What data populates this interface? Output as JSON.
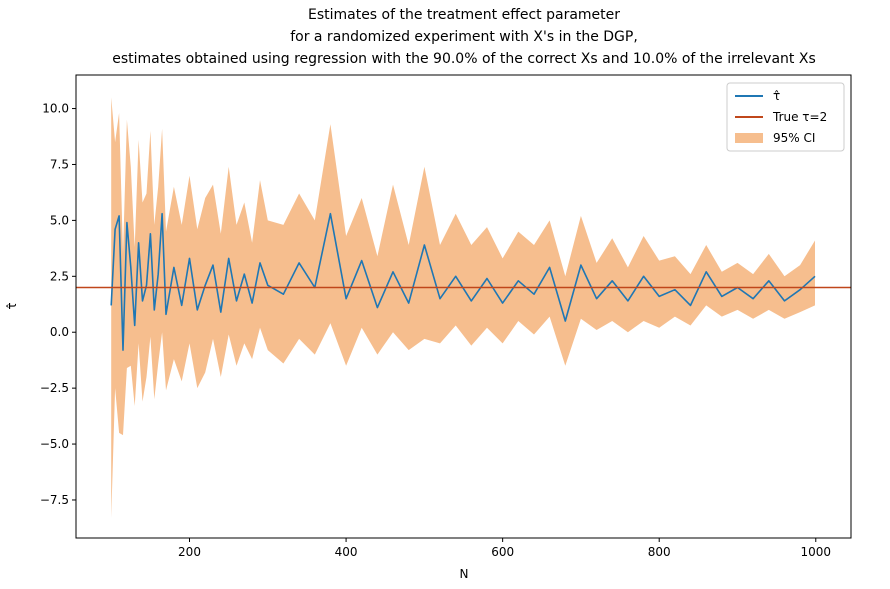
{
  "chart_data": {
    "type": "line",
    "title_lines": [
      "Estimates of the treatment effect parameter",
      "for a randomized experiment with X's in the DGP,",
      "estimates obtained using regression with the 90.0% of the correct Xs and 10.0% of the irrelevant Xs"
    ],
    "xlabel": "N",
    "ylabel": "τ̂",
    "xlim": [
      55,
      1045
    ],
    "ylim": [
      -9.2,
      11.5
    ],
    "xticks": [
      200,
      400,
      600,
      800,
      1000
    ],
    "xtick_labels": [
      "200",
      "400",
      "600",
      "800",
      "1000"
    ],
    "yticks": [
      -7.5,
      -5.0,
      -2.5,
      0.0,
      2.5,
      5.0,
      7.5,
      10.0
    ],
    "ytick_labels": [
      "−7.5",
      "−5.0",
      "−2.5",
      "0.0",
      "2.5",
      "5.0",
      "7.5",
      "10.0"
    ],
    "n_range": [
      100,
      999
    ],
    "true_tau": 2,
    "legend": {
      "location": "upper right",
      "entries": [
        {
          "label": "τ̂",
          "kind": "line",
          "color": "#1f77b4"
        },
        {
          "label": "True τ=2",
          "kind": "line",
          "color": "#c0471b"
        },
        {
          "label": "95% CI",
          "kind": "patch",
          "color": "#f6be8e"
        }
      ]
    },
    "series": [
      {
        "name": "τ̂",
        "color": "#1f77b4",
        "x": [
          100,
          105,
          110,
          115,
          120,
          125,
          130,
          135,
          140,
          145,
          150,
          155,
          160,
          165,
          170,
          180,
          190,
          200,
          210,
          220,
          230,
          240,
          250,
          260,
          270,
          280,
          290,
          300,
          320,
          340,
          360,
          380,
          400,
          420,
          440,
          460,
          480,
          500,
          520,
          540,
          560,
          580,
          600,
          620,
          640,
          660,
          680,
          700,
          720,
          740,
          760,
          780,
          800,
          820,
          840,
          860,
          880,
          900,
          920,
          940,
          960,
          980,
          999
        ],
        "values": [
          1.2,
          4.6,
          5.2,
          -0.8,
          4.9,
          2.9,
          0.3,
          4.0,
          1.4,
          2.1,
          4.4,
          1.0,
          2.6,
          5.3,
          0.8,
          2.9,
          1.2,
          3.3,
          1.0,
          2.1,
          3.0,
          0.9,
          3.3,
          1.4,
          2.6,
          1.3,
          3.1,
          2.1,
          1.7,
          3.1,
          2.0,
          5.3,
          1.5,
          3.2,
          1.1,
          2.7,
          1.3,
          3.9,
          1.5,
          2.5,
          1.4,
          2.4,
          1.3,
          2.3,
          1.7,
          2.9,
          0.5,
          3.0,
          1.5,
          2.3,
          1.4,
          2.5,
          1.6,
          1.9,
          1.2,
          2.7,
          1.6,
          2.0,
          1.5,
          2.3,
          1.4,
          1.9,
          2.5
        ]
      },
      {
        "name": "95% CI",
        "color": "#f6be8e",
        "x": [
          100,
          105,
          110,
          115,
          120,
          125,
          130,
          135,
          140,
          145,
          150,
          155,
          160,
          165,
          170,
          180,
          190,
          200,
          210,
          220,
          230,
          240,
          250,
          260,
          270,
          280,
          290,
          300,
          320,
          340,
          360,
          380,
          400,
          420,
          440,
          460,
          480,
          500,
          520,
          540,
          560,
          580,
          600,
          620,
          640,
          660,
          680,
          700,
          720,
          740,
          760,
          780,
          800,
          820,
          840,
          860,
          880,
          900,
          920,
          940,
          960,
          980,
          999
        ],
        "lower": [
          -8.3,
          -2.5,
          -4.5,
          -4.6,
          -1.6,
          -1.5,
          -3.3,
          -0.5,
          -3.1,
          -2.0,
          -0.2,
          -3.0,
          -1.4,
          0.0,
          -2.6,
          -1.2,
          -2.2,
          -0.5,
          -2.5,
          -1.8,
          -0.3,
          -2.0,
          -0.1,
          -1.5,
          -0.5,
          -1.2,
          0.2,
          -0.8,
          -1.4,
          -0.3,
          -1.0,
          0.4,
          -1.5,
          0.2,
          -1.0,
          0.0,
          -0.8,
          -0.3,
          -0.5,
          0.3,
          -0.6,
          0.2,
          -0.5,
          0.5,
          -0.1,
          0.7,
          -1.5,
          0.6,
          0.1,
          0.5,
          0.0,
          0.5,
          0.2,
          0.7,
          0.3,
          1.2,
          0.7,
          1.0,
          0.6,
          1.0,
          0.6,
          0.9,
          1.2
        ],
        "upper": [
          10.5,
          8.5,
          9.8,
          3.5,
          9.5,
          7.4,
          3.8,
          8.6,
          5.8,
          6.2,
          9.0,
          4.8,
          6.5,
          9.1,
          4.5,
          6.5,
          4.8,
          7.0,
          4.6,
          6.0,
          6.6,
          4.4,
          7.4,
          4.8,
          5.8,
          4.0,
          6.8,
          5.0,
          4.8,
          6.2,
          5.0,
          9.3,
          4.3,
          6.0,
          3.4,
          6.6,
          3.9,
          7.4,
          3.9,
          5.3,
          3.9,
          4.7,
          3.3,
          4.5,
          3.9,
          5.0,
          2.5,
          5.2,
          3.1,
          4.2,
          2.9,
          4.3,
          3.2,
          3.4,
          2.6,
          3.9,
          2.7,
          3.1,
          2.6,
          3.5,
          2.5,
          3.0,
          4.1
        ]
      }
    ]
  }
}
